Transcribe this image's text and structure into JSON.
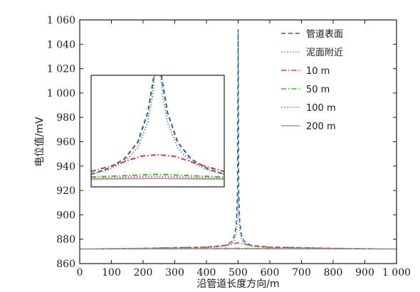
{
  "chart_data": {
    "type": "line",
    "xlabel": "沿管道长度方向/m",
    "ylabel": "电位值/mV",
    "xlim": [
      0,
      1000
    ],
    "ylim": [
      860,
      1060
    ],
    "xticks": [
      0,
      100,
      200,
      300,
      400,
      500,
      600,
      700,
      800,
      900,
      1000
    ],
    "xtick_labels": [
      "0",
      "100",
      "200",
      "300",
      "400",
      "500",
      "600",
      "700",
      "800",
      "900",
      "1 000"
    ],
    "yticks": [
      860,
      880,
      900,
      920,
      940,
      960,
      980,
      1000,
      1020,
      1040,
      1060
    ],
    "ytick_labels": [
      "860",
      "880",
      "900",
      "920",
      "940",
      "960",
      "980",
      "1 000",
      "1 020",
      "1 040",
      "1 060"
    ],
    "grid": false,
    "legend_position": "top-right",
    "series": [
      {
        "name": "管道表面",
        "color": "#2f5f78",
        "dash": "dashed",
        "x": [
          0,
          200,
          400,
          460,
          480,
          490,
          495,
          498,
          500,
          502,
          505,
          510,
          520,
          540,
          600,
          800,
          1000
        ],
        "y": [
          872,
          872.5,
          873.5,
          875,
          878,
          884,
          895,
          920,
          1052,
          920,
          895,
          884,
          878,
          875,
          873.5,
          872.5,
          872
        ]
      },
      {
        "name": "泥面附近",
        "color": "#6b86c6",
        "dash": "dotted",
        "x": [
          0,
          200,
          400,
          460,
          480,
          490,
          495,
          498,
          500,
          502,
          505,
          510,
          520,
          540,
          600,
          800,
          1000
        ],
        "y": [
          872,
          872.5,
          873,
          874,
          876,
          880,
          887,
          900,
          918,
          900,
          887,
          880,
          876,
          874,
          873,
          872.5,
          872
        ]
      },
      {
        "name": "10 m",
        "color": "#d93a2b",
        "dash": "dashdot",
        "x": [
          0,
          200,
          400,
          450,
          480,
          500,
          520,
          550,
          600,
          800,
          1000
        ],
        "y": [
          872,
          872.5,
          873.5,
          874.5,
          876,
          877,
          876,
          874.5,
          873.5,
          872.5,
          872
        ]
      },
      {
        "name": "50 m",
        "color": "#4caf35",
        "dash": "dashdot",
        "x": [
          0,
          300,
          500,
          700,
          1000
        ],
        "y": [
          872,
          872.2,
          872.6,
          872.2,
          872
        ]
      },
      {
        "name": "100 m",
        "color": "#c94a9a",
        "dash": "dotted",
        "x": [
          0,
          300,
          500,
          700,
          1000
        ],
        "y": [
          872,
          872.1,
          872.3,
          872.1,
          872
        ]
      },
      {
        "name": "200 m",
        "color": "#9a9a9a",
        "dash": "solid",
        "x": [
          0,
          500,
          1000
        ],
        "y": [
          872,
          872.1,
          872
        ]
      }
    ],
    "inset": {
      "description_visible": false,
      "xlim": [
        460,
        540
      ],
      "ylim": [
        871,
        879
      ],
      "series": [
        {
          "name": "管道表面",
          "x": [
            460,
            470,
            480,
            488,
            494,
            497,
            499
          ],
          "y": [
            871.9,
            872.3,
            873.0,
            874.2,
            876.3,
            878.4,
            880
          ]
        },
        {
          "name": "管道表面-right",
          "x": [
            501,
            503,
            506,
            512,
            520,
            530,
            540
          ],
          "y": [
            880,
            878.4,
            876.3,
            874.2,
            873.0,
            872.3,
            871.9
          ]
        },
        {
          "name": "泥面附近",
          "x": [
            460,
            470,
            480,
            488,
            494,
            497,
            499,
            501,
            503,
            506,
            512,
            520,
            530,
            540
          ],
          "y": [
            871.9,
            872.2,
            872.8,
            873.8,
            875.6,
            877.6,
            880,
            880,
            877.6,
            875.6,
            873.8,
            872.8,
            872.2,
            871.9
          ]
        },
        {
          "name": "10 m",
          "x": [
            460,
            475,
            490,
            500,
            510,
            525,
            540
          ],
          "y": [
            872.1,
            872.6,
            873.2,
            873.3,
            873.2,
            872.6,
            872.1
          ]
        },
        {
          "name": "50 m",
          "x": [
            460,
            500,
            540
          ],
          "y": [
            871.7,
            871.9,
            871.7
          ]
        },
        {
          "name": "100 m",
          "x": [
            460,
            500,
            540
          ],
          "y": [
            871.6,
            871.75,
            871.6
          ]
        },
        {
          "name": "200 m",
          "x": [
            460,
            500,
            540
          ],
          "y": [
            871.55,
            871.6,
            871.55
          ]
        }
      ]
    }
  }
}
